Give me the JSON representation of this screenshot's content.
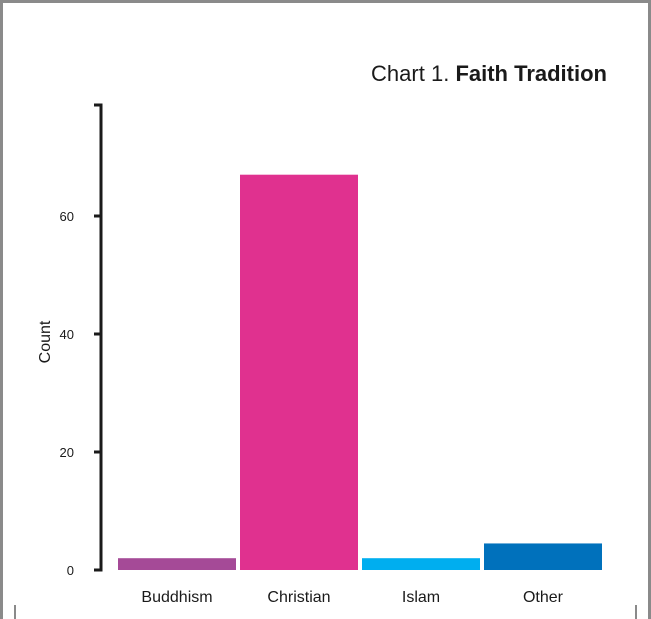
{
  "title_prefix": "Chart 1.",
  "title_main": "Faith Tradition",
  "chart_data": {
    "type": "bar",
    "title": "Chart 1. Faith Tradition",
    "xlabel": "",
    "ylabel": "Count",
    "categories": [
      "Buddhism",
      "Christian",
      "Islam",
      "Other"
    ],
    "values": [
      2,
      67,
      2,
      4.5
    ],
    "colors": [
      "#a54a97",
      "#e0318f",
      "#00aeef",
      "#0071bc"
    ],
    "ylim": [
      0,
      76
    ],
    "yticks": [
      0,
      20,
      40,
      60
    ],
    "grid": false
  }
}
